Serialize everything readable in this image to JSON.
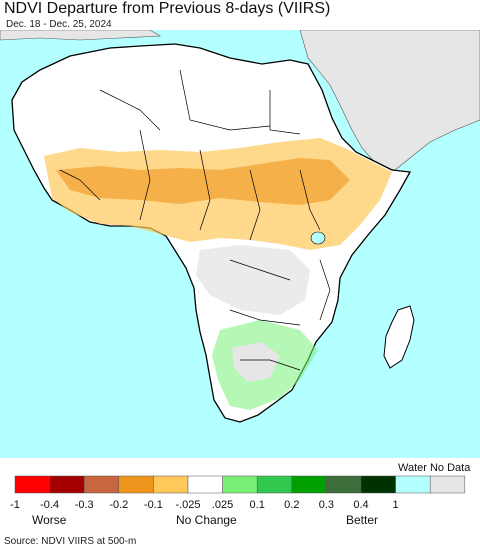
{
  "title": "NDVI Departure from Previous 8-days (VIIRS)",
  "date_range": "Dec. 18 - Dec. 25, 2024",
  "legend": {
    "water_no_data_label": "Water No Data",
    "swatches": [
      {
        "color": "#ff0000"
      },
      {
        "color": "#a50000"
      },
      {
        "color": "#c8673f"
      },
      {
        "color": "#f0961e"
      },
      {
        "color": "#fec85a"
      },
      {
        "color": "#ffffff"
      },
      {
        "color": "#78f078"
      },
      {
        "color": "#32c850"
      },
      {
        "color": "#00a000"
      },
      {
        "color": "#3c6e3c"
      },
      {
        "color": "#003200"
      },
      {
        "color": "#b4ffff"
      },
      {
        "color": "#e6e6e6"
      }
    ],
    "ticks": [
      "-1",
      "-0.4",
      "-0.3",
      "-0.2",
      "-0.1",
      "-.025",
      ".025",
      "0.1",
      "0.2",
      "0.3",
      "0.4",
      "1"
    ],
    "worse_label": "Worse",
    "no_change_label": "No Change",
    "better_label": "Better"
  },
  "colors": {
    "ocean": "#b4ffff",
    "land_no_change": "#ffffff",
    "no_data_land": "#e6e6e6",
    "border": "#000000"
  },
  "source": "Source: NDVI VIIRS at 500-m"
}
